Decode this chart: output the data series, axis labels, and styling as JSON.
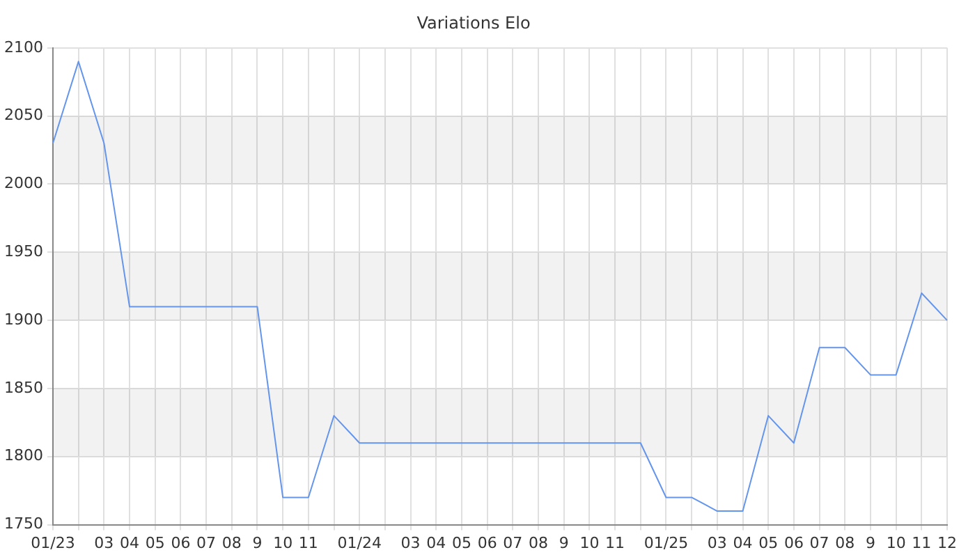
{
  "chart_data": {
    "type": "line",
    "title": "Variations Elo",
    "categories": [
      "01/23",
      null,
      "03",
      "04",
      "05",
      "06",
      "07",
      "08",
      "9",
      "10",
      "11",
      null,
      "01/24",
      null,
      "03",
      "04",
      "05",
      "06",
      "07",
      "08",
      "9",
      "10",
      "11",
      null,
      "01/25",
      null,
      "03",
      "04",
      "05",
      "06",
      "07",
      "08",
      "9",
      "10",
      "11",
      "12"
    ],
    "series": [
      {
        "color": "#6495ed",
        "values": [
          2030,
          2090,
          2030,
          1910,
          1910,
          1910,
          1910,
          1910,
          1910,
          1770,
          1770,
          1830,
          1810,
          1810,
          1810,
          1810,
          1810,
          1810,
          1810,
          1810,
          1810,
          1810,
          1810,
          1810,
          1770,
          1770,
          1760,
          1760,
          1830,
          1810,
          1880,
          1880,
          1860,
          1860,
          1920,
          1900
        ]
      }
    ],
    "ylim": [
      1750,
      2100
    ],
    "yticks": [
      1750,
      1800,
      1850,
      1900,
      1950,
      2000,
      2050,
      2100
    ],
    "grid": true,
    "legend": false,
    "marker": "none",
    "line_style": "solid"
  }
}
